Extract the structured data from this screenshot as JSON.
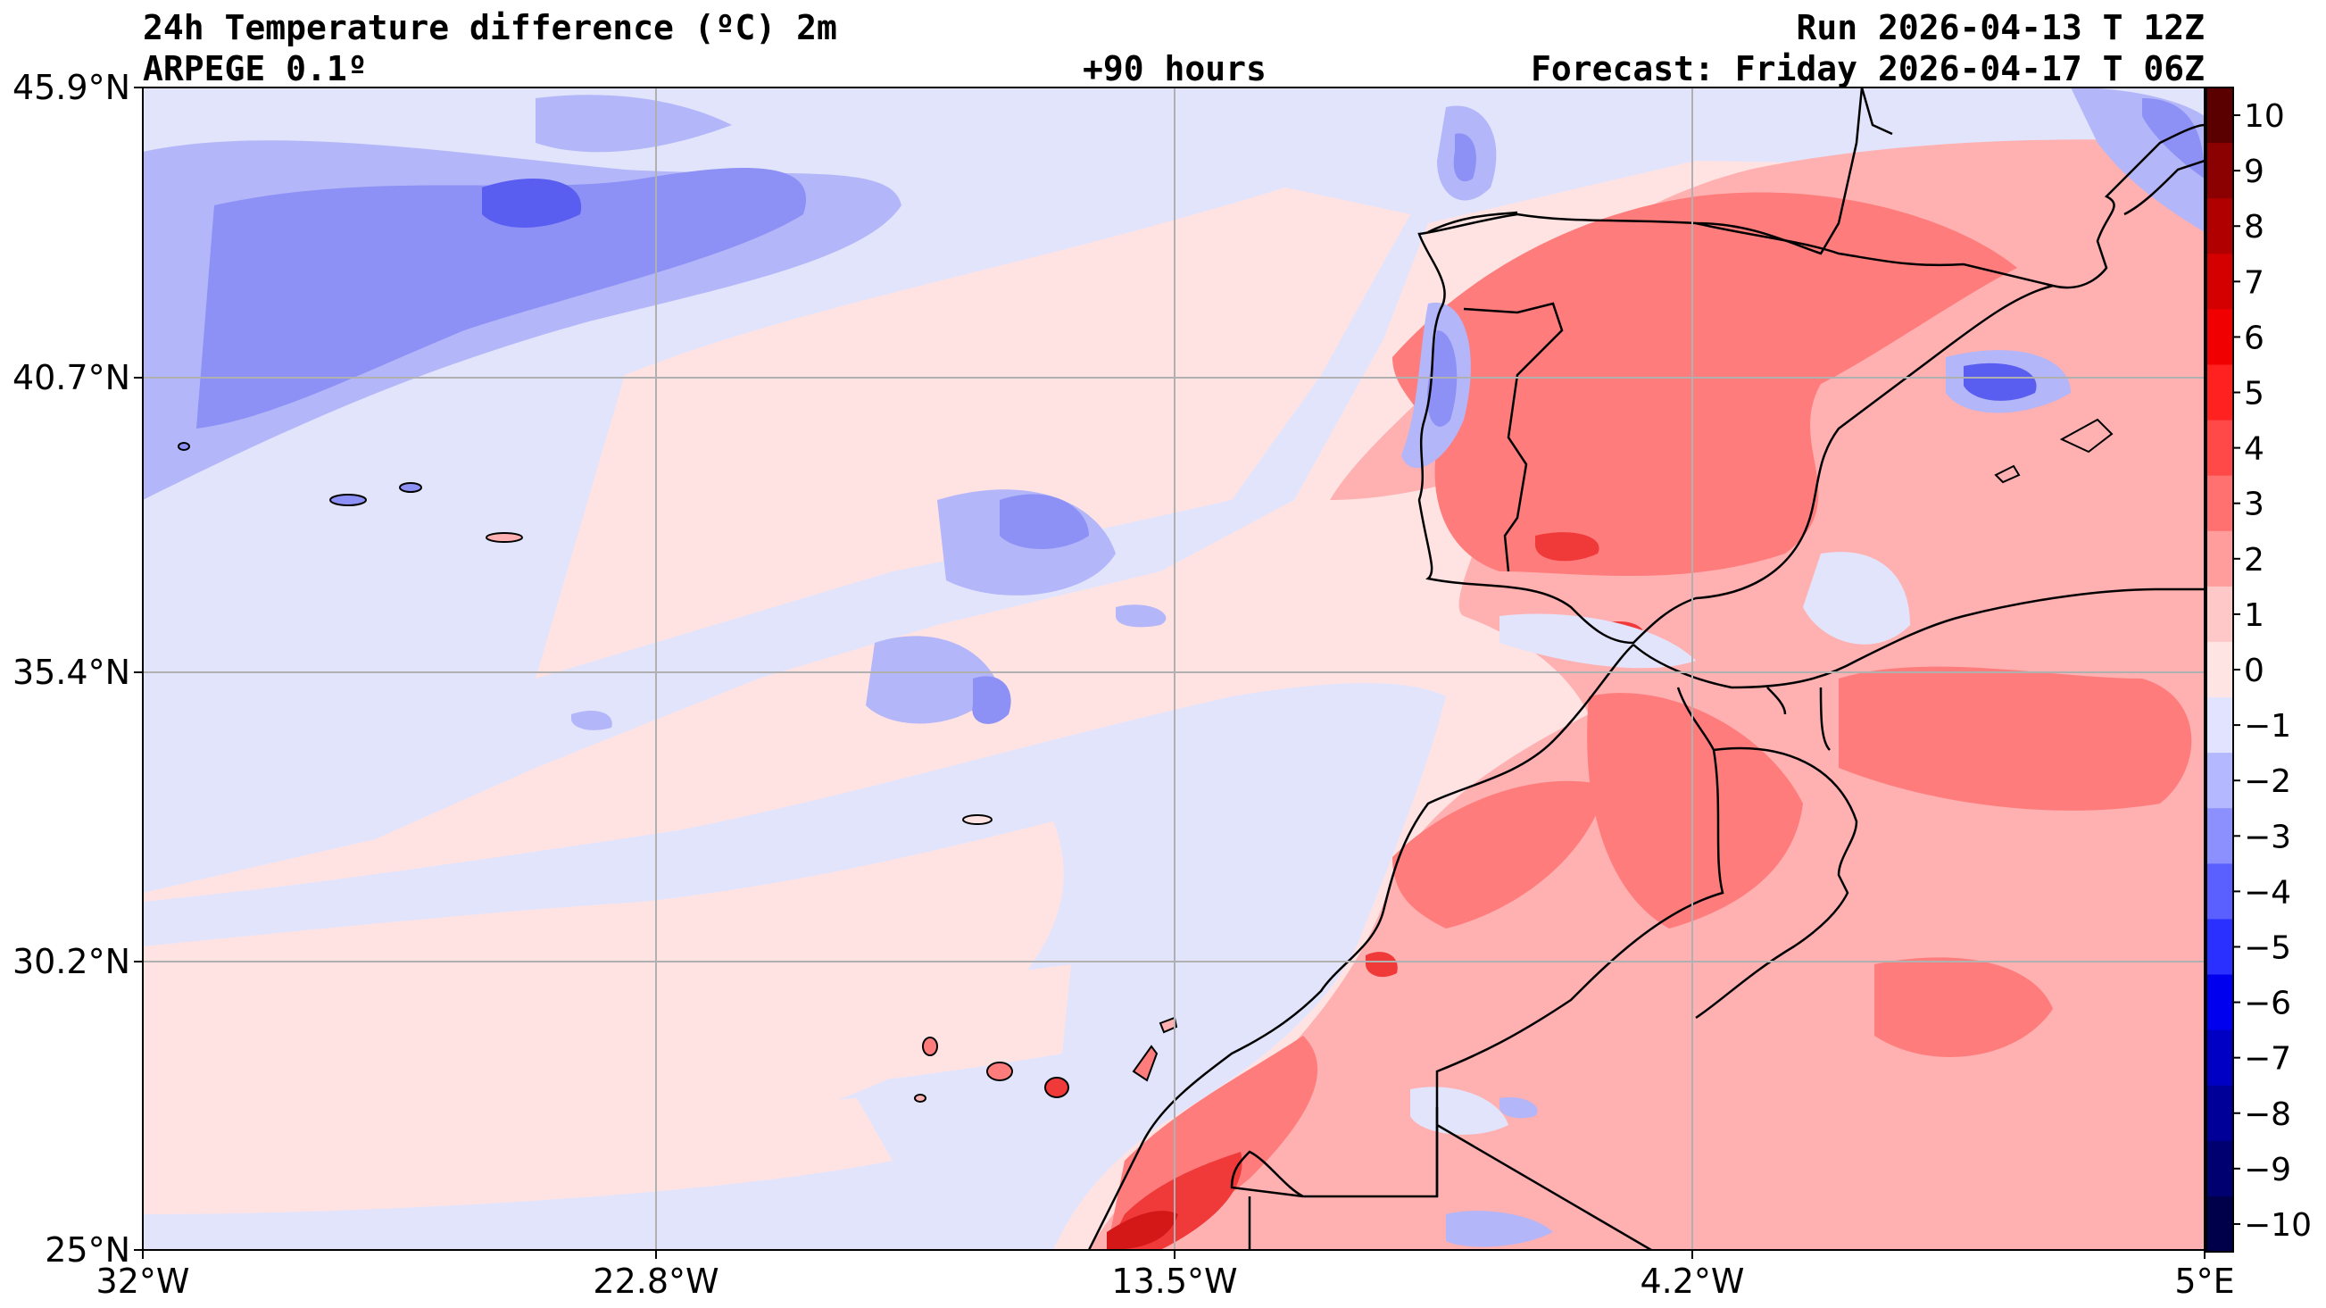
{
  "header": {
    "title": "24h Temperature difference (ºC) 2m",
    "model": "ARPEGE 0.1º",
    "lead": "+90 hours",
    "run": "Run 2026-04-13 T 12Z",
    "forecast": "Forecast: Friday 2026-04-17 T 06Z"
  },
  "map": {
    "lon_range": [
      -32,
      5
    ],
    "lat_range": [
      25,
      45.9
    ],
    "lat_ticks": [
      {
        "value": 45.9,
        "label": "45.9°N"
      },
      {
        "value": 40.7,
        "label": "40.7°N"
      },
      {
        "value": 35.4,
        "label": "35.4°N"
      },
      {
        "value": 30.2,
        "label": "30.2°N"
      },
      {
        "value": 25,
        "label": "25°N"
      }
    ],
    "lon_ticks": [
      {
        "value": -32,
        "label": "32°W"
      },
      {
        "value": -22.8,
        "label": "22.8°W"
      },
      {
        "value": -13.5,
        "label": "13.5°W"
      },
      {
        "value": -4.2,
        "label": "4.2°W"
      },
      {
        "value": 5,
        "label": "5°E"
      }
    ],
    "gridlines": true
  },
  "colorbar": {
    "values": [
      10,
      9,
      8,
      7,
      6,
      5,
      4,
      3,
      2,
      1,
      0,
      -1,
      -2,
      -3,
      -4,
      -5,
      -6,
      -7,
      -8,
      -9,
      -10
    ],
    "labels": [
      "10",
      "9",
      "8",
      "7",
      "6",
      "5",
      "4",
      "3",
      "2",
      "1",
      "0",
      "−1",
      "−2",
      "−3",
      "−4",
      "−5",
      "−6",
      "−7",
      "−8",
      "−9",
      "−10"
    ],
    "band_colors": [
      "#5a0000",
      "#8b0000",
      "#b00000",
      "#d40000",
      "#f00000",
      "#ff2020",
      "#ff4848",
      "#ff7070",
      "#ff9c9c",
      "#ffc8c8",
      "#ffe4e4",
      "#e2e4ff",
      "#b4b8ff",
      "#8c90ff",
      "#5a60ff",
      "#2a30ff",
      "#0000ee",
      "#0000c4",
      "#000098",
      "#000070",
      "#00004a"
    ]
  },
  "palette": {
    "neutral_warm": "#ffe3e3",
    "neutral_cool": "#e2e4fc",
    "warm_1": "#ffb0b0",
    "warm_2": "#ff7c7c",
    "warm_3": "#f03a3a",
    "warm_4": "#d41818",
    "cool_1": "#b3b6f9",
    "cool_2": "#8d90f4",
    "cool_3": "#5a5ef0"
  }
}
